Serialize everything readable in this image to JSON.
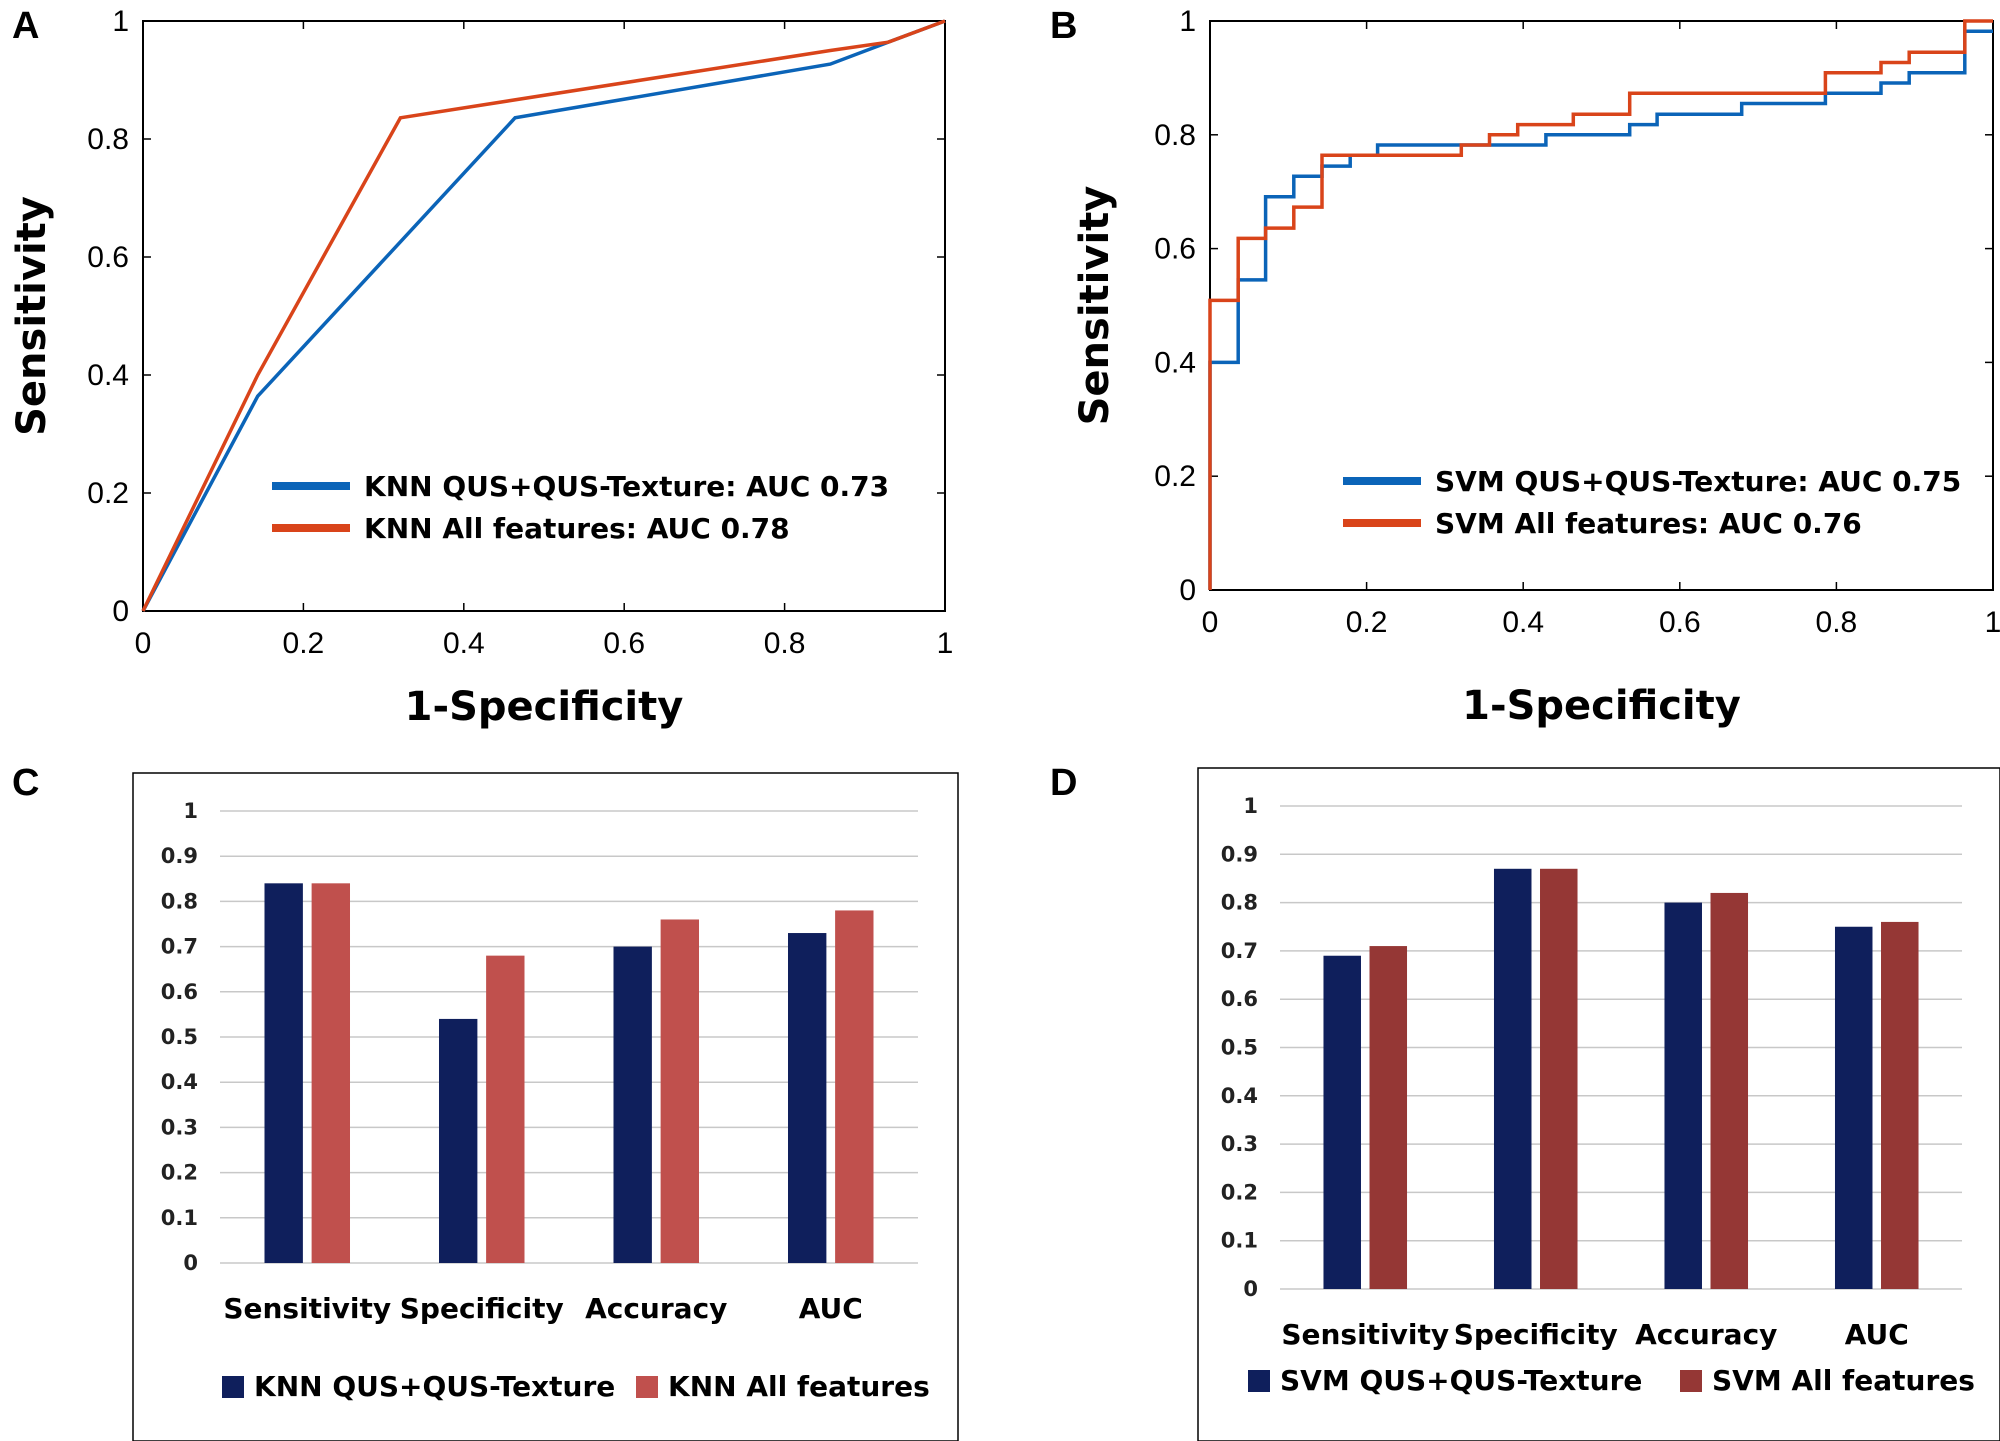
{
  "chart_data": [
    {
      "panel": "A",
      "type": "line",
      "xlabel": "1-Specificity",
      "ylabel": "Sensitivity",
      "xlim": [
        0,
        1
      ],
      "ylim": [
        0,
        1
      ],
      "xticks": [
        "0",
        "0.2",
        "0.4",
        "0.6",
        "0.8",
        "1"
      ],
      "yticks": [
        "0",
        "0.2",
        "0.4",
        "0.6",
        "0.8",
        "1"
      ],
      "legend_position": "lower-right",
      "series": [
        {
          "name": "KNN QUS+QUS-Texture: AUC 0.73",
          "color": "#0B64B8",
          "x": [
            0,
            0.143,
            0.464,
            0.857,
            0.929,
            1
          ],
          "y": [
            0,
            0.364,
            0.836,
            0.927,
            0.964,
            1
          ]
        },
        {
          "name": "KNN All features: AUC 0.78",
          "color": "#D9441A",
          "x": [
            0,
            0.143,
            0.321,
            0.857,
            0.929,
            1
          ],
          "y": [
            0,
            0.4,
            0.836,
            0.95,
            0.964,
            1
          ]
        }
      ]
    },
    {
      "panel": "B",
      "type": "line",
      "xlabel": "1-Specificity",
      "ylabel": "Sensitivity",
      "xlim": [
        0,
        1
      ],
      "ylim": [
        0,
        1
      ],
      "xticks": [
        "0",
        "0.2",
        "0.4",
        "0.6",
        "0.8",
        "1"
      ],
      "yticks": [
        "0",
        "0.2",
        "0.4",
        "0.6",
        "0.8",
        "1"
      ],
      "legend_position": "lower-right",
      "series": [
        {
          "name": "SVM QUS+QUS-Texture: AUC 0.75",
          "color": "#0B64B8",
          "x": [
            0,
            0,
            0.036,
            0.036,
            0.071,
            0.071,
            0.107,
            0.107,
            0.143,
            0.143,
            0.179,
            0.179,
            0.214,
            0.214,
            0.357,
            0.357,
            0.429,
            0.429,
            0.536,
            0.536,
            0.571,
            0.571,
            0.679,
            0.679,
            0.786,
            0.786,
            0.857,
            0.857,
            0.893,
            0.893,
            0.964,
            0.964,
            1
          ],
          "y": [
            0,
            0.4,
            0.4,
            0.545,
            0.545,
            0.691,
            0.691,
            0.727,
            0.727,
            0.745,
            0.745,
            0.764,
            0.764,
            0.782,
            0.782,
            0.782,
            0.782,
            0.8,
            0.8,
            0.818,
            0.818,
            0.836,
            0.836,
            0.855,
            0.855,
            0.873,
            0.873,
            0.891,
            0.891,
            0.909,
            0.909,
            0.982,
            0.982
          ]
        },
        {
          "name": "SVM All features: AUC 0.76",
          "color": "#D9441A",
          "x": [
            0,
            0,
            0.036,
            0.036,
            0.071,
            0.071,
            0.107,
            0.107,
            0.143,
            0.143,
            0.321,
            0.321,
            0.357,
            0.357,
            0.393,
            0.393,
            0.464,
            0.464,
            0.536,
            0.536,
            0.786,
            0.786,
            0.857,
            0.857,
            0.893,
            0.893,
            0.964,
            0.964,
            1
          ],
          "y": [
            0,
            0.509,
            0.509,
            0.618,
            0.618,
            0.636,
            0.636,
            0.673,
            0.673,
            0.764,
            0.764,
            0.782,
            0.782,
            0.8,
            0.8,
            0.818,
            0.818,
            0.836,
            0.836,
            0.873,
            0.873,
            0.909,
            0.909,
            0.927,
            0.927,
            0.945,
            0.945,
            1,
            1
          ]
        }
      ]
    },
    {
      "panel": "C",
      "type": "bar",
      "categories": [
        "Sensitivity",
        "Specificity",
        "Accuracy",
        "AUC"
      ],
      "ylim": [
        0,
        1
      ],
      "yticks": [
        "0",
        "0.1",
        "0.2",
        "0.3",
        "0.4",
        "0.5",
        "0.6",
        "0.7",
        "0.8",
        "0.9",
        "1"
      ],
      "grid": true,
      "legend_position": "bottom",
      "series": [
        {
          "name": "KNN QUS+QUS-Texture",
          "color": "#0F1F5C",
          "values": [
            0.84,
            0.54,
            0.7,
            0.73
          ]
        },
        {
          "name": "KNN All features",
          "color": "#C0504D",
          "values": [
            0.84,
            0.68,
            0.76,
            0.78
          ]
        }
      ]
    },
    {
      "panel": "D",
      "type": "bar",
      "categories": [
        "Sensitivity",
        "Specificity",
        "Accuracy",
        "AUC"
      ],
      "ylim": [
        0,
        1
      ],
      "yticks": [
        "0",
        "0.1",
        "0.2",
        "0.3",
        "0.4",
        "0.5",
        "0.6",
        "0.7",
        "0.8",
        "0.9",
        "1"
      ],
      "grid": true,
      "legend_position": "bottom",
      "series": [
        {
          "name": "SVM QUS+QUS-Texture",
          "color": "#0F1F5C",
          "values": [
            0.69,
            0.87,
            0.8,
            0.75
          ]
        },
        {
          "name": "SVM All features",
          "color": "#953735",
          "values": [
            0.71,
            0.87,
            0.82,
            0.76
          ]
        }
      ]
    }
  ]
}
